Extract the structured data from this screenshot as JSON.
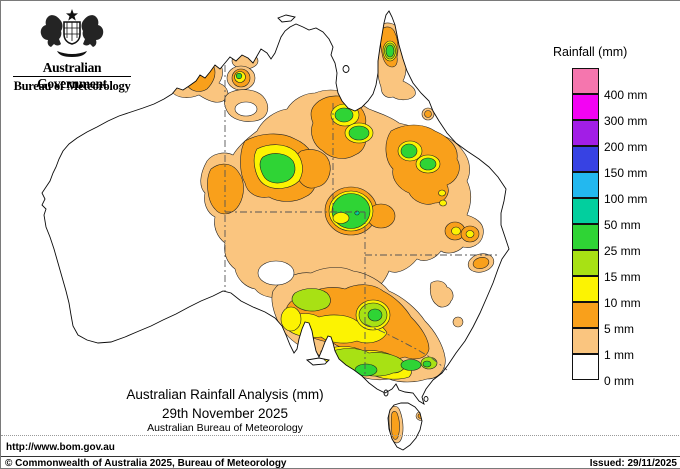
{
  "header": {
    "government": "Australian Government",
    "bureau": "Bureau of Meteorology"
  },
  "legend": {
    "title": "Rainfall (mm)",
    "entries": [
      {
        "label": "400 mm",
        "color": "#F576AE"
      },
      {
        "label": "300 mm",
        "color": "#F303F3"
      },
      {
        "label": "200 mm",
        "color": "#A21EE6"
      },
      {
        "label": "150 mm",
        "color": "#3742E3"
      },
      {
        "label": "100 mm",
        "color": "#23B8EF"
      },
      {
        "label": "50 mm",
        "color": "#02CF9E"
      },
      {
        "label": "25 mm",
        "color": "#2FD435"
      },
      {
        "label": "15 mm",
        "color": "#A8E114"
      },
      {
        "label": "10 mm",
        "color": "#FCF302"
      },
      {
        "label": "5 mm",
        "color": "#F9A01B"
      },
      {
        "label": "1 mm",
        "color": "#FAC57F"
      },
      {
        "label": "0 mm",
        "color": "#FFFFFF"
      }
    ]
  },
  "captions": {
    "title": "Australian Rainfall Analysis (mm)",
    "date": "29th November 2025",
    "org": "Australian Bureau of Meteorology"
  },
  "footer": {
    "url": "http://www.bom.gov.au",
    "copyright": "© Commonwealth of Australia 2025, Bureau of Meteorology",
    "issued": "Issued: 29/11/2025"
  },
  "palette": {
    "tan": "#FAC57F",
    "orange": "#F9A01B",
    "yellow": "#FCF302",
    "lightgreen": "#A8E114",
    "green": "#2FD435",
    "teal": "#02CF9E",
    "white": "#FFFFFF"
  }
}
